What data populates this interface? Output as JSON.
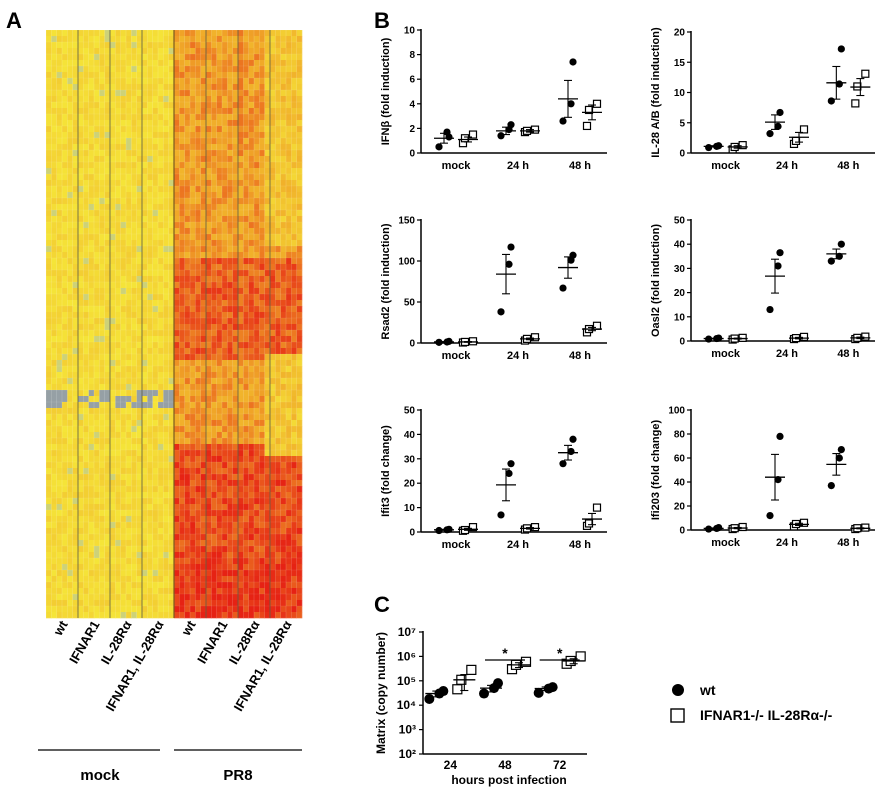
{
  "panels": {
    "a": "A",
    "b": "B",
    "c": "C"
  },
  "heatmap": {
    "sample_labels": [
      "wt",
      "IFNAR1",
      "IL-28Rα",
      "IFNAR1, IL-28Rα",
      "wt",
      "IFNAR1",
      "IL-28Rα",
      "IFNAR1, IL-28Rα"
    ],
    "groups": [
      "mock",
      "PR8"
    ],
    "colors": {
      "low": "#f2ec3a",
      "mid": "#f0a020",
      "high": "#e82010",
      "gray": "#9aa0a0"
    }
  },
  "chart_data": [
    {
      "type": "scatter",
      "panel": "B1",
      "ylabel": "IFNβ (fold induction)",
      "ylim": [
        0,
        10
      ],
      "yticks": [
        0,
        2,
        4,
        6,
        8,
        10
      ],
      "categories": [
        "mock",
        "24 h",
        "48 h"
      ],
      "series": [
        {
          "marker": "circle",
          "points": [
            [
              0.5,
              1.7,
              1.3
            ],
            [
              1.4,
              1.9,
              2.3
            ],
            [
              2.6,
              4.0,
              7.4
            ]
          ],
          "mean": [
            1.2,
            1.8,
            4.4
          ],
          "sem": [
            0.4,
            0.3,
            1.5
          ]
        },
        {
          "marker": "square",
          "points": [
            [
              0.8,
              1.2,
              1.5
            ],
            [
              1.7,
              1.8,
              1.9
            ],
            [
              2.2,
              3.5,
              4.0
            ]
          ],
          "mean": [
            1.1,
            1.8,
            3.3
          ],
          "sem": [
            0.2,
            0.1,
            0.6
          ]
        }
      ]
    },
    {
      "type": "scatter",
      "panel": "B2",
      "ylabel": "IL-28 A/B (fold induction)",
      "ylim": [
        0,
        20
      ],
      "yticks": [
        0,
        5,
        10,
        15,
        20
      ],
      "categories": [
        "mock",
        "24 h",
        "48 h"
      ],
      "series": [
        {
          "marker": "circle",
          "points": [
            [
              0.9,
              1.1,
              1.2
            ],
            [
              3.2,
              4.4,
              6.7
            ],
            [
              8.6,
              11.4,
              17.2
            ]
          ],
          "mean": [
            1.1,
            5.1,
            11.6
          ],
          "sem": [
            0.1,
            1.2,
            2.7
          ]
        },
        {
          "marker": "square",
          "points": [
            [
              0.6,
              1.0,
              1.3
            ],
            [
              1.5,
              2.0,
              3.9
            ],
            [
              8.2,
              11.0,
              13.1
            ]
          ],
          "mean": [
            1.0,
            2.6,
            10.9
          ],
          "sem": [
            0.2,
            0.8,
            1.4
          ]
        }
      ]
    },
    {
      "type": "scatter",
      "panel": "B3",
      "ylabel": "Rsad2 (fold induction)",
      "ylim": [
        0,
        150
      ],
      "yticks": [
        0,
        50,
        100,
        150
      ],
      "categories": [
        "mock",
        "24 h",
        "48 h"
      ],
      "series": [
        {
          "marker": "circle",
          "points": [
            [
              0.8,
              1.2,
              2.0
            ],
            [
              38,
              96,
              117
            ],
            [
              67,
              101,
              107
            ]
          ],
          "mean": [
            1.3,
            84,
            92
          ],
          "sem": [
            0.4,
            24,
            13
          ]
        },
        {
          "marker": "square",
          "points": [
            [
              0.6,
              1.3,
              2.1
            ],
            [
              3,
              5,
              7
            ],
            [
              13,
              17,
              21
            ]
          ],
          "mean": [
            1.3,
            5,
            17
          ],
          "sem": [
            0.4,
            1,
            2
          ]
        }
      ]
    },
    {
      "type": "scatter",
      "panel": "B4",
      "ylabel": "Oasl2 (fold induction)",
      "ylim": [
        0,
        50
      ],
      "yticks": [
        0,
        10,
        20,
        30,
        40,
        50
      ],
      "categories": [
        "mock",
        "24 h",
        "48 h"
      ],
      "series": [
        {
          "marker": "circle",
          "points": [
            [
              0.8,
              1.0,
              1.2
            ],
            [
              13,
              31,
              36.5
            ],
            [
              33,
              35,
              40
            ]
          ],
          "mean": [
            1.0,
            26.8,
            36
          ],
          "sem": [
            0.1,
            7,
            2
          ]
        },
        {
          "marker": "square",
          "points": [
            [
              0.6,
              1.0,
              1.3
            ],
            [
              0.8,
              1.2,
              1.7
            ],
            [
              0.8,
              1.3,
              1.8
            ]
          ],
          "mean": [
            1.0,
            1.2,
            1.3
          ],
          "sem": [
            0.2,
            0.3,
            0.3
          ]
        }
      ]
    },
    {
      "type": "scatter",
      "panel": "B5",
      "ylabel": "Ifit3 (fold change)",
      "ylim": [
        0,
        50
      ],
      "yticks": [
        0,
        10,
        20,
        30,
        40,
        50
      ],
      "categories": [
        "mock",
        "24 h",
        "48 h"
      ],
      "series": [
        {
          "marker": "circle",
          "points": [
            [
              0.6,
              0.9,
              1.1
            ],
            [
              7,
              24,
              28
            ],
            [
              28,
              33,
              38
            ]
          ],
          "mean": [
            0.9,
            19.3,
            32.5
          ],
          "sem": [
            0.2,
            6.5,
            3
          ]
        },
        {
          "marker": "square",
          "points": [
            [
              0.5,
              0.8,
              2.0
            ],
            [
              1.0,
              1.5,
              2.0
            ],
            [
              2.5,
              3.5,
              10
            ]
          ],
          "mean": [
            1.1,
            1.5,
            5.3
          ],
          "sem": [
            0.4,
            0.3,
            2.3
          ]
        }
      ]
    },
    {
      "type": "scatter",
      "panel": "B6",
      "ylabel": "Ifi203 (fold change)",
      "ylim": [
        0,
        100
      ],
      "yticks": [
        0,
        20,
        40,
        60,
        80,
        100
      ],
      "categories": [
        "mock",
        "24 h",
        "48 h"
      ],
      "series": [
        {
          "marker": "circle",
          "points": [
            [
              0.8,
              1.3,
              2.0
            ],
            [
              12,
              42,
              78
            ],
            [
              37,
              60,
              67
            ]
          ],
          "mean": [
            1.3,
            44,
            54.7
          ],
          "sem": [
            0.4,
            19,
            9
          ]
        },
        {
          "marker": "square",
          "points": [
            [
              0.8,
              1.5,
              2.5
            ],
            [
              3,
              5,
              6
            ],
            [
              0.8,
              1.5,
              2.0
            ]
          ],
          "mean": [
            1.6,
            4.7,
            1.4
          ],
          "sem": [
            0.5,
            0.9,
            0.4
          ]
        }
      ]
    },
    {
      "type": "scatter",
      "panel": "C",
      "ylabel": "Matrix (copy number)",
      "xlabel": "hours post infection",
      "yscale": "log",
      "ylim": [
        100,
        10000000
      ],
      "yticks": [
        "10²",
        "10³",
        "10⁴",
        "10⁵",
        "10⁶",
        "10⁷"
      ],
      "categories": [
        "24",
        "48",
        "72"
      ],
      "significance": [
        "",
        "*",
        "*"
      ],
      "series": [
        {
          "name": "wt",
          "marker": "circle",
          "points": [
            [
              18000,
              30000,
              38000
            ],
            [
              30000,
              50000,
              80000
            ],
            [
              32000,
              48000,
              55000
            ]
          ],
          "mean": [
            30000,
            50000,
            48000
          ],
          "sem": [
            8000,
            15000,
            8000
          ]
        },
        {
          "name": "IFNAR1-/- IL-28Rα-/-",
          "marker": "square",
          "points": [
            [
              45000,
              110000,
              280000
            ],
            [
              300000,
              450000,
              600000
            ],
            [
              500000,
              650000,
              1000000
            ]
          ],
          "mean": [
            110000,
            450000,
            650000
          ],
          "sem": [
            70000,
            100000,
            150000
          ]
        }
      ]
    }
  ]
}
